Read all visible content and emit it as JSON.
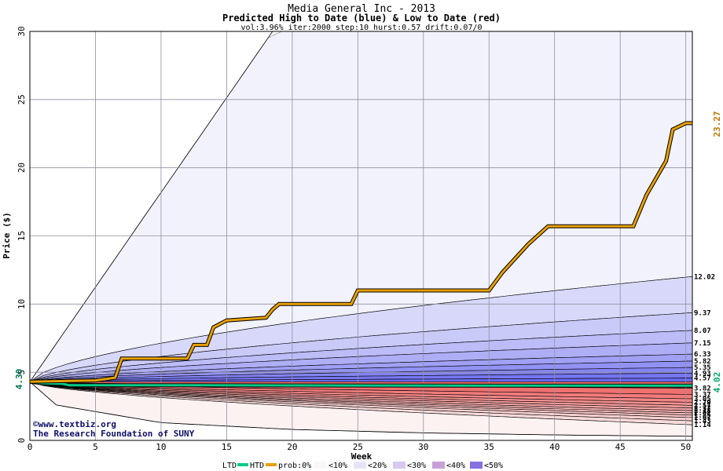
{
  "chart_data": {
    "type": "area",
    "title": "Media General Inc - 2013",
    "subtitle": "Predicted High to Date (blue) &  Low to Date (red)",
    "params": "vol:3.96% iter:2000 step:10 hurst:0.57 drift:0.07/0",
    "xlabel": "Week",
    "ylabel": "Price ($)",
    "xlim": [
      0,
      50.5
    ],
    "ylim": [
      0,
      30
    ],
    "x_ticks": [
      "0",
      "5",
      "10",
      "15",
      "20",
      "25",
      "30",
      "35",
      "40",
      "45",
      "50"
    ],
    "y_ticks": [
      "0",
      "5",
      "10",
      "15",
      "20",
      "25",
      "30"
    ],
    "grid": true,
    "start_price": 4.3,
    "start_label": "4.30",
    "hi_label": "23.27",
    "lo_label": "4.02",
    "credit_line1": "©www.textbiz.org",
    "credit_line2": "The Research Foundation of SUNY",
    "high_levels": [
      12.02,
      9.37,
      8.07,
      7.15,
      6.33,
      5.82,
      5.35,
      4.93,
      4.57
    ],
    "high_level_labels": [
      "12.02",
      "9.37",
      "8.07",
      "7.15",
      "6.33",
      "5.82",
      "5.35",
      "4.93",
      "4.57"
    ],
    "low_levels": [
      3.82,
      3.37,
      3.05,
      2.79,
      2.57,
      2.37,
      2.18,
      2.01,
      1.85,
      1.67,
      1.43,
      1.14
    ],
    "low_level_labels": [
      "3.82",
      "3.37",
      "3.05",
      "2.79",
      "2.57",
      "2.37",
      "2.18",
      "2.01",
      "1.85",
      "1.67",
      "1.43",
      "1.14"
    ],
    "outer_high": [
      [
        0,
        4.3
      ],
      [
        18.5,
        30
      ]
    ],
    "outer_low": [
      [
        0,
        4.3
      ],
      [
        2,
        2.6
      ],
      [
        10,
        1.3
      ],
      [
        20,
        0.8
      ],
      [
        30,
        0.55
      ],
      [
        40,
        0.4
      ],
      [
        50.5,
        0.3
      ]
    ],
    "htd_series": [
      [
        0,
        4.3
      ],
      [
        5,
        4.4
      ],
      [
        6.5,
        4.6
      ],
      [
        7,
        6.0
      ],
      [
        12,
        6.0
      ],
      [
        12.5,
        7.0
      ],
      [
        13.5,
        7.0
      ],
      [
        14,
        8.3
      ],
      [
        15,
        8.8
      ],
      [
        18,
        9.0
      ],
      [
        18.5,
        9.6
      ],
      [
        19,
        10.0
      ],
      [
        24.5,
        10.0
      ],
      [
        25,
        11.0
      ],
      [
        35,
        11.0
      ],
      [
        36,
        12.3
      ],
      [
        38,
        14.4
      ],
      [
        39.5,
        15.7
      ],
      [
        46,
        15.7
      ],
      [
        47,
        18.0
      ],
      [
        48.5,
        20.5
      ],
      [
        49,
        22.8
      ],
      [
        50,
        23.27
      ],
      [
        50.5,
        23.27
      ]
    ],
    "ltd_series": [
      [
        0,
        4.3
      ],
      [
        1,
        4.2
      ],
      [
        2.5,
        4.15
      ],
      [
        3,
        4.05
      ],
      [
        10,
        4.05
      ],
      [
        20,
        4.03
      ],
      [
        35,
        4.02
      ],
      [
        50.5,
        4.02
      ]
    ],
    "legend": {
      "ltd": "LTD",
      "htd": "HTD",
      "prob": "prob:0%",
      "bins": [
        "<10%",
        "<20%",
        "<30%",
        "<40%",
        "<50%"
      ]
    },
    "colors": {
      "htd": "#e8a000",
      "ltd": "#00cc88",
      "blue_outer": "#f2f2fd",
      "red_outer": "#fdf2f2",
      "blue_inner": "#6868f0",
      "red_inner": "#f07070"
    }
  }
}
